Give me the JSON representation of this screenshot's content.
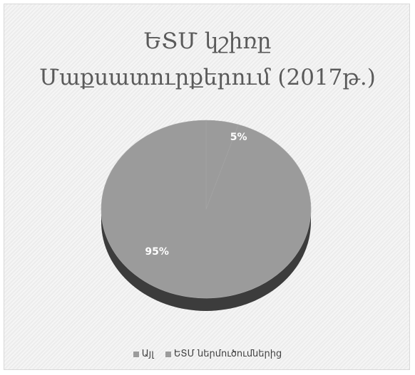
{
  "chart_data": {
    "type": "pie",
    "title_lines": [
      "ԵՏՄ կշիռը",
      "Մաքսատուրքերում (2017թ.)"
    ],
    "categories": [
      "Այլ",
      "ԵՏՄ ներմուծումներից"
    ],
    "values": [
      5,
      95
    ],
    "data_labels": [
      "5%",
      "95%"
    ],
    "legend_position": "bottom",
    "colors": {
      "slice": "#9b9b9b",
      "slice_side": "#3c3c3c",
      "label": "#ffffff",
      "title": "#5a5a5a"
    }
  }
}
